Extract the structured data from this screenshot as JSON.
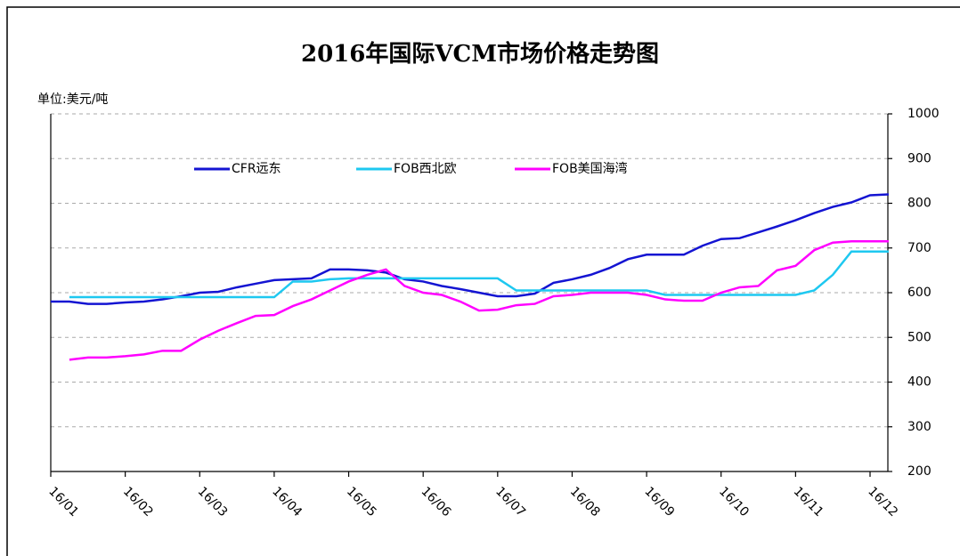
{
  "chart_data": {
    "type": "line",
    "title": "2016年国际VCM市场价格走势图",
    "y_label": "单位:美元/吨",
    "categories": [
      "16/01",
      null,
      null,
      null,
      "16/02",
      null,
      null,
      null,
      "16/03",
      null,
      null,
      null,
      "16/04",
      null,
      null,
      null,
      "16/05",
      null,
      null,
      null,
      "16/06",
      null,
      null,
      null,
      "16/07",
      null,
      null,
      null,
      "16/08",
      null,
      null,
      null,
      "16/09",
      null,
      null,
      null,
      "16/10",
      null,
      null,
      null,
      "16/11",
      null,
      null,
      null,
      "16/12",
      null
    ],
    "series": [
      {
        "name": "CFR远东",
        "color": "#1414d2",
        "values": [
          580,
          580,
          575,
          575,
          578,
          580,
          585,
          592,
          600,
          602,
          612,
          620,
          628,
          630,
          632,
          652,
          652,
          650,
          645,
          630,
          625,
          615,
          608,
          600,
          592,
          592,
          598,
          622,
          630,
          640,
          655,
          675,
          685,
          685,
          685,
          705,
          720,
          722,
          735,
          748,
          762,
          778,
          792,
          802,
          818,
          820
        ]
      },
      {
        "name": "FOB西北欧",
        "color": "#1ec8f0",
        "values": [
          null,
          590,
          590,
          590,
          590,
          590,
          590,
          590,
          590,
          590,
          590,
          590,
          590,
          625,
          625,
          630,
          632,
          632,
          632,
          632,
          632,
          632,
          632,
          632,
          632,
          605,
          605,
          605,
          605,
          605,
          605,
          605,
          605,
          595,
          595,
          595,
          595,
          595,
          595,
          595,
          595,
          605,
          640,
          692,
          692,
          692
        ]
      },
      {
        "name": "FOB美国海湾",
        "color": "#ff00ff",
        "values": [
          null,
          450,
          455,
          455,
          458,
          462,
          470,
          470,
          495,
          515,
          532,
          548,
          550,
          570,
          585,
          605,
          625,
          640,
          652,
          615,
          600,
          595,
          580,
          560,
          562,
          572,
          575,
          592,
          595,
          600,
          600,
          600,
          595,
          585,
          582,
          582,
          600,
          612,
          615,
          650,
          660,
          695,
          712,
          715,
          715,
          715
        ]
      }
    ],
    "ylim": [
      200,
      1000
    ],
    "yticks": [
      200,
      300,
      400,
      500,
      600,
      700,
      800,
      900,
      1000
    ],
    "grid": true,
    "legend": "top"
  }
}
